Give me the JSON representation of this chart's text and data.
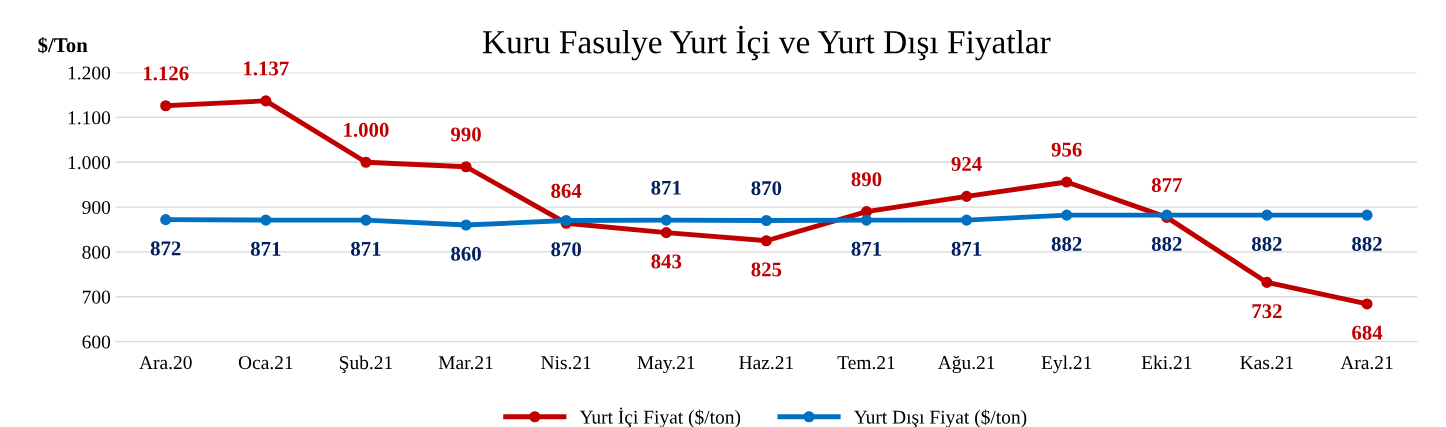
{
  "chart_data": {
    "type": "line",
    "title": "Kuru Fasulye Yurt İçi ve Yurt Dışı Fiyatlar",
    "ylabel": "$/Ton",
    "categories": [
      "Ara.20",
      "Oca.21",
      "Şub.21",
      "Mar.21",
      "Nis.21",
      "May.21",
      "Haz.21",
      "Tem.21",
      "Ağu.21",
      "Eyl.21",
      "Eki.21",
      "Kas.21",
      "Ara.21"
    ],
    "series": [
      {
        "name": "Yurt İçi Fiyat ($/ton)",
        "color": "#c00000",
        "values": [
          1126,
          1137,
          1000,
          990,
          864,
          843,
          825,
          890,
          924,
          956,
          877,
          732,
          684
        ],
        "value_labels": [
          "1.126",
          "1.137",
          "1.000",
          "990",
          "864",
          "843",
          "825",
          "890",
          "924",
          "956",
          "877",
          "732",
          "684"
        ]
      },
      {
        "name": "Yurt Dışı Fiyat ($/ton)",
        "color": "#0070c0",
        "values": [
          872,
          871,
          871,
          860,
          870,
          871,
          870,
          871,
          871,
          882,
          882,
          882,
          882
        ],
        "value_labels": [
          "872",
          "871",
          "871",
          "860",
          "870",
          "871",
          "870",
          "871",
          "871",
          "882",
          "882",
          "882",
          "882"
        ]
      }
    ],
    "ylim": [
      600,
      1200
    ],
    "yticks": [
      600,
      700,
      800,
      900,
      {
        "value": 1000,
        "label": "1.000"
      },
      {
        "value": 1100,
        "label": "1.100"
      },
      {
        "value": 1200,
        "label": "1.200"
      }
    ],
    "grid": "y",
    "legend": "bottom",
    "marker": "circle",
    "line_style": "solid"
  }
}
